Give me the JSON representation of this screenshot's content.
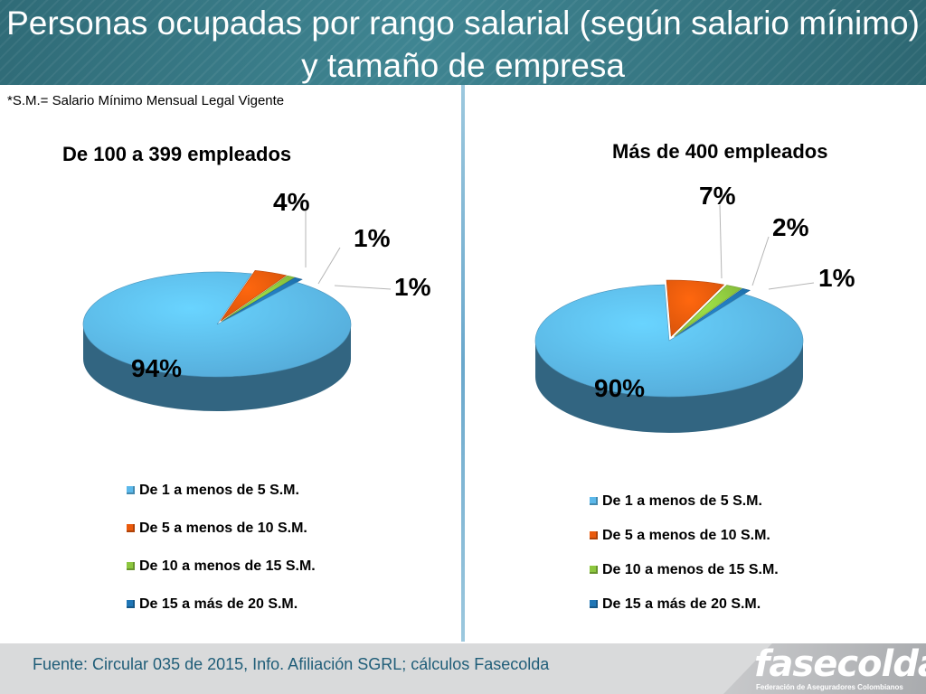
{
  "title": "Personas ocupadas por rango salarial (según salario mínimo) y tamaño de empresa",
  "note": "*S.M.= Salario Mínimo Mensual Legal Vigente",
  "source": "Fuente: Circular 035 de 2015, Info. Afiliación SGRL; cálculos Fasecolda",
  "logo": {
    "word": "fasecolda",
    "subtitle": "Federación de Aseguradores Colombianos"
  },
  "colors": {
    "de_1_a_5": "#5bb8ea",
    "de_5_a_10": "#ea5a0c",
    "de_10_a_15": "#8cc63e",
    "de_15_a_20": "#1f76b6"
  },
  "chart_data": [
    {
      "type": "pie",
      "title": "De 100 a 399 empleados",
      "categories": [
        "De 1 a menos de 5 S.M.",
        "De 5 a menos de 10 S.M.",
        "De 10 a menos de 15 S.M.",
        "De 15 a más de 20 S.M."
      ],
      "values": [
        94,
        4,
        1,
        1
      ],
      "labels": [
        "94%",
        "4%",
        "1%",
        "1%"
      ],
      "legend_placement": "bottom"
    },
    {
      "type": "pie",
      "title": "Más de 400 empleados",
      "categories": [
        "De 1 a menos de 5 S.M.",
        "De 5 a menos de 10 S.M.",
        "De 10 a menos de 15 S.M.",
        "De 15 a más de 20 S.M."
      ],
      "values": [
        90,
        7,
        2,
        1
      ],
      "labels": [
        "90%",
        "7%",
        "2%",
        "1%"
      ],
      "legend_placement": "bottom"
    }
  ]
}
